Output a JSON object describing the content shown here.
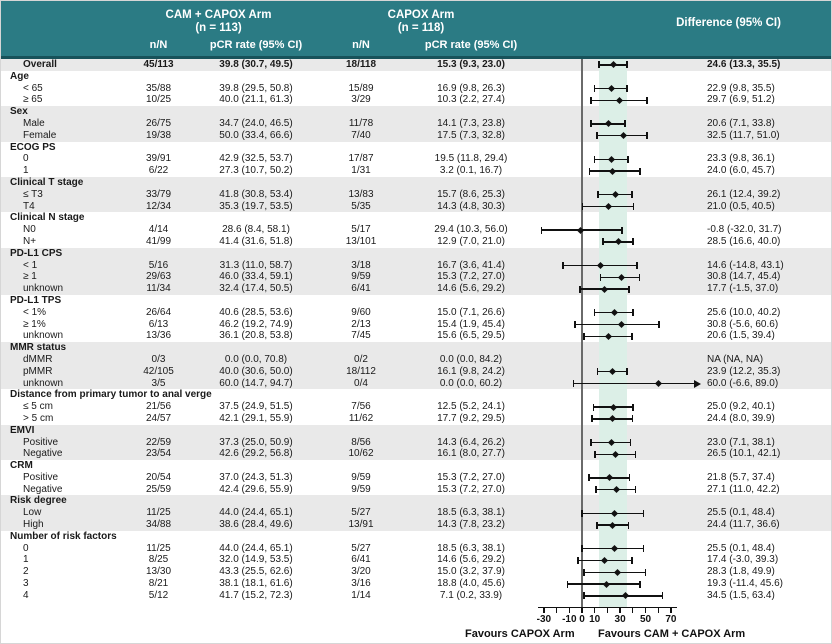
{
  "header": {
    "arm1": {
      "title": "CAM + CAPOX Arm",
      "subtitle": "(n = 113)",
      "col_nn": "n/N",
      "col_rate": "pCR rate (95% CI)"
    },
    "arm2": {
      "title": "CAPOX Arm",
      "subtitle": "(n = 118)",
      "col_nn": "n/N",
      "col_rate": "pCR rate (95% CI)"
    },
    "diff_label": "Difference (95% CI)"
  },
  "footer": {
    "left": "Favours CAPOX Arm",
    "right": "Favours CAM + CAPOX Arm"
  },
  "colors": {
    "header_bg": "#2b7b84",
    "header_border": "#17525a",
    "row_shade": "#e9e9e9",
    "ci_band": "#dcefe7",
    "marker": "#111111",
    "zero_line": "#6a6a6a"
  },
  "axis": {
    "tick_min": -30,
    "tick_max": 70,
    "tick_step": 10,
    "labeled_ticks": [
      -30,
      -10,
      0,
      10,
      30,
      50,
      70
    ]
  },
  "chart_data": {
    "type": "forest",
    "x_axis_label": "Difference (95% CI)",
    "xlim_ticks": [
      -30,
      70
    ],
    "shaded_band_ci": [
      13.3,
      35.5
    ],
    "rows": [
      {
        "label": "Overall",
        "bold": true,
        "shade": true,
        "cam_nN": "45/113",
        "cam_rate": "39.8 (30.7, 49.5)",
        "cap_nN": "18/118",
        "cap_rate": "15.3 (9.3, 23.0)",
        "diff": "24.6 (13.3, 35.5)",
        "est": 24.6,
        "lo": 13.3,
        "hi": 35.5
      },
      {
        "label": "Age",
        "section": true
      },
      {
        "label": "< 65",
        "cam_nN": "35/88",
        "cam_rate": "39.8 (29.5, 50.8)",
        "cap_nN": "15/89",
        "cap_rate": "16.9 (9.8, 26.3)",
        "diff": "22.9 (9.8, 35.5)",
        "est": 22.9,
        "lo": 9.8,
        "hi": 35.5
      },
      {
        "label": "≥ 65",
        "cam_nN": "10/25",
        "cam_rate": "40.0 (21.1, 61.3)",
        "cap_nN": "3/29",
        "cap_rate": "10.3 (2.2, 27.4)",
        "diff": "29.7 (6.9, 51.2)",
        "est": 29.7,
        "lo": 6.9,
        "hi": 51.2
      },
      {
        "label": "Sex",
        "section": true,
        "shade": true
      },
      {
        "label": "Male",
        "shade": true,
        "cam_nN": "26/75",
        "cam_rate": "34.7 (24.0, 46.5)",
        "cap_nN": "11/78",
        "cap_rate": "14.1 (7.3, 23.8)",
        "diff": "20.6 (7.1, 33.8)",
        "est": 20.6,
        "lo": 7.1,
        "hi": 33.8
      },
      {
        "label": "Female",
        "shade": true,
        "cam_nN": "19/38",
        "cam_rate": "50.0 (33.4, 66.6)",
        "cap_nN": "7/40",
        "cap_rate": "17.5 (7.3, 32.8)",
        "diff": "32.5 (11.7, 51.0)",
        "est": 32.5,
        "lo": 11.7,
        "hi": 51.0
      },
      {
        "label": "ECOG PS",
        "section": true
      },
      {
        "label": "0",
        "cam_nN": "39/91",
        "cam_rate": "42.9 (32.5, 53.7)",
        "cap_nN": "17/87",
        "cap_rate": "19.5 (11.8, 29.4)",
        "diff": "23.3 (9.8, 36.1)",
        "est": 23.3,
        "lo": 9.8,
        "hi": 36.1
      },
      {
        "label": "1",
        "cam_nN": "6/22",
        "cam_rate": "27.3 (10.7, 50.2)",
        "cap_nN": "1/31",
        "cap_rate": "3.2 (0.1, 16.7)",
        "diff": "24.0 (6.0, 45.7)",
        "est": 24.0,
        "lo": 6.0,
        "hi": 45.7
      },
      {
        "label": "Clinical T stage",
        "section": true,
        "shade": true
      },
      {
        "label": "≤ T3",
        "shade": true,
        "cam_nN": "33/79",
        "cam_rate": "41.8 (30.8, 53.4)",
        "cap_nN": "13/83",
        "cap_rate": "15.7 (8.6, 25.3)",
        "diff": "26.1 (12.4, 39.2)",
        "est": 26.1,
        "lo": 12.4,
        "hi": 39.2
      },
      {
        "label": "T4",
        "shade": true,
        "cam_nN": "12/34",
        "cam_rate": "35.3 (19.7, 53.5)",
        "cap_nN": "5/35",
        "cap_rate": "14.3 (4.8, 30.3)",
        "diff": "21.0 (0.5, 40.5)",
        "est": 21.0,
        "lo": 0.5,
        "hi": 40.5
      },
      {
        "label": "Clinical N stage",
        "section": true
      },
      {
        "label": "N0",
        "cam_nN": "4/14",
        "cam_rate": "28.6 (8.4, 58.1)",
        "cap_nN": "5/17",
        "cap_rate": "29.4 (10.3, 56.0)",
        "diff": "-0.8 (-32.0, 31.7)",
        "est": -0.8,
        "lo": -32.0,
        "hi": 31.7
      },
      {
        "label": "N+",
        "cam_nN": "41/99",
        "cam_rate": "41.4 (31.6, 51.8)",
        "cap_nN": "13/101",
        "cap_rate": "12.9 (7.0, 21.0)",
        "diff": "28.5 (16.6, 40.0)",
        "est": 28.5,
        "lo": 16.6,
        "hi": 40.0
      },
      {
        "label": "PD-L1 CPS",
        "section": true,
        "shade": true
      },
      {
        "label": "< 1",
        "shade": true,
        "cam_nN": "5/16",
        "cam_rate": "31.3 (11.0, 58.7)",
        "cap_nN": "3/18",
        "cap_rate": "16.7 (3.6, 41.4)",
        "diff": "14.6 (-14.8, 43.1)",
        "est": 14.6,
        "lo": -14.8,
        "hi": 43.1
      },
      {
        "label": "≥ 1",
        "shade": true,
        "cam_nN": "29/63",
        "cam_rate": "46.0 (33.4, 59.1)",
        "cap_nN": "9/59",
        "cap_rate": "15.3 (7.2, 27.0)",
        "diff": "30.8 (14.7, 45.4)",
        "est": 30.8,
        "lo": 14.7,
        "hi": 45.4
      },
      {
        "label": "unknown",
        "shade": true,
        "cam_nN": "11/34",
        "cam_rate": "32.4 (17.4, 50.5)",
        "cap_nN": "6/41",
        "cap_rate": "14.6 (5.6, 29.2)",
        "diff": "17.7 (-1.5, 37.0)",
        "est": 17.7,
        "lo": -1.5,
        "hi": 37.0
      },
      {
        "label": "PD-L1 TPS",
        "section": true
      },
      {
        "label": "< 1%",
        "cam_nN": "26/64",
        "cam_rate": "40.6 (28.5, 53.6)",
        "cap_nN": "9/60",
        "cap_rate": "15.0 (7.1, 26.6)",
        "diff": "25.6 (10.0, 40.2)",
        "est": 25.6,
        "lo": 10.0,
        "hi": 40.2
      },
      {
        "label": "≥ 1%",
        "cam_nN": "6/13",
        "cam_rate": "46.2 (19.2, 74.9)",
        "cap_nN": "2/13",
        "cap_rate": "15.4 (1.9, 45.4)",
        "diff": "30.8 (-5.6, 60.6)",
        "est": 30.8,
        "lo": -5.6,
        "hi": 60.6
      },
      {
        "label": "unknown",
        "cam_nN": "13/36",
        "cam_rate": "36.1 (20.8, 53.8)",
        "cap_nN": "7/45",
        "cap_rate": "15.6 (6.5, 29.5)",
        "diff": "20.6 (1.5, 39.4)",
        "est": 20.6,
        "lo": 1.5,
        "hi": 39.4
      },
      {
        "label": "MMR status",
        "section": true,
        "shade": true
      },
      {
        "label": "dMMR",
        "shade": true,
        "cam_nN": "0/3",
        "cam_rate": "0.0 (0.0, 70.8)",
        "cap_nN": "0/2",
        "cap_rate": "0.0 (0.0, 84.2)",
        "diff": "NA (NA, NA)",
        "est": null
      },
      {
        "label": "pMMR",
        "shade": true,
        "cam_nN": "42/105",
        "cam_rate": "40.0 (30.6, 50.0)",
        "cap_nN": "18/112",
        "cap_rate": "16.1 (9.8, 24.2)",
        "diff": "23.9 (12.2, 35.3)",
        "est": 23.9,
        "lo": 12.2,
        "hi": 35.3
      },
      {
        "label": "unknown",
        "shade": true,
        "cam_nN": "3/5",
        "cam_rate": "60.0 (14.7, 94.7)",
        "cap_nN": "0/4",
        "cap_rate": "0.0 (0.0, 60.2)",
        "diff": "60.0 (-6.6, 89.0)",
        "est": 60.0,
        "lo": -6.6,
        "hi": 89.0,
        "arrow_right": true
      },
      {
        "label": "Distance from primary tumor to anal verge",
        "section": true
      },
      {
        "label": "≤ 5 cm",
        "cam_nN": "21/56",
        "cam_rate": "37.5 (24.9, 51.5)",
        "cap_nN": "7/56",
        "cap_rate": "12.5 (5.2, 24.1)",
        "diff": "25.0 (9.2, 40.1)",
        "est": 25.0,
        "lo": 9.2,
        "hi": 40.1
      },
      {
        "label": "> 5 cm",
        "cam_nN": "24/57",
        "cam_rate": "42.1 (29.1, 55.9)",
        "cap_nN": "11/62",
        "cap_rate": "17.7 (9.2, 29.5)",
        "diff": "24.4 (8.0, 39.9)",
        "est": 24.4,
        "lo": 8.0,
        "hi": 39.9
      },
      {
        "label": "EMVI",
        "section": true,
        "shade": true
      },
      {
        "label": "Positive",
        "shade": true,
        "cam_nN": "22/59",
        "cam_rate": "37.3 (25.0, 50.9)",
        "cap_nN": "8/56",
        "cap_rate": "14.3 (6.4, 26.2)",
        "diff": "23.0 (7.1, 38.1)",
        "est": 23.0,
        "lo": 7.1,
        "hi": 38.1
      },
      {
        "label": "Negative",
        "shade": true,
        "cam_nN": "23/54",
        "cam_rate": "42.6 (29.2, 56.8)",
        "cap_nN": "10/62",
        "cap_rate": "16.1 (8.0, 27.7)",
        "diff": "26.5 (10.1, 42.1)",
        "est": 26.5,
        "lo": 10.1,
        "hi": 42.1
      },
      {
        "label": "CRM",
        "section": true
      },
      {
        "label": "Positive",
        "cam_nN": "20/54",
        "cam_rate": "37.0 (24.3, 51.3)",
        "cap_nN": "9/59",
        "cap_rate": "15.3 (7.2, 27.0)",
        "diff": "21.8 (5.7, 37.4)",
        "est": 21.8,
        "lo": 5.7,
        "hi": 37.4
      },
      {
        "label": "Negative",
        "cam_nN": "25/59",
        "cam_rate": "42.4 (29.6, 55.9)",
        "cap_nN": "9/59",
        "cap_rate": "15.3 (7.2, 27.0)",
        "diff": "27.1 (11.0, 42.2)",
        "est": 27.1,
        "lo": 11.0,
        "hi": 42.2
      },
      {
        "label": "Risk degree",
        "section": true,
        "shade": true
      },
      {
        "label": "Low",
        "shade": true,
        "cam_nN": "11/25",
        "cam_rate": "44.0 (24.4, 65.1)",
        "cap_nN": "5/27",
        "cap_rate": "18.5 (6.3, 38.1)",
        "diff": "25.5 (0.1, 48.4)",
        "est": 25.5,
        "lo": 0.1,
        "hi": 48.4
      },
      {
        "label": "High",
        "shade": true,
        "cam_nN": "34/88",
        "cam_rate": "38.6 (28.4, 49.6)",
        "cap_nN": "13/91",
        "cap_rate": "14.3 (7.8, 23.2)",
        "diff": "24.4 (11.7, 36.6)",
        "est": 24.4,
        "lo": 11.7,
        "hi": 36.6
      },
      {
        "label": "Number of risk factors",
        "section": true
      },
      {
        "label": "0",
        "cam_nN": "11/25",
        "cam_rate": "44.0 (24.4, 65.1)",
        "cap_nN": "5/27",
        "cap_rate": "18.5 (6.3, 38.1)",
        "diff": "25.5 (0.1, 48.4)",
        "est": 25.5,
        "lo": 0.1,
        "hi": 48.4
      },
      {
        "label": "1",
        "cam_nN": "8/25",
        "cam_rate": "32.0 (14.9, 53.5)",
        "cap_nN": "6/41",
        "cap_rate": "14.6 (5.6, 29.2)",
        "diff": "17.4 (-3.0, 39.3)",
        "est": 17.4,
        "lo": -3.0,
        "hi": 39.3
      },
      {
        "label": "2",
        "cam_nN": "13/30",
        "cam_rate": "43.3 (25.5, 62.6)",
        "cap_nN": "3/20",
        "cap_rate": "15.0 (3.2, 37.9)",
        "diff": "28.3 (1.8, 49.9)",
        "est": 28.3,
        "lo": 1.8,
        "hi": 49.9
      },
      {
        "label": "3",
        "cam_nN": "8/21",
        "cam_rate": "38.1 (18.1, 61.6)",
        "cap_nN": "3/16",
        "cap_rate": "18.8 (4.0, 45.6)",
        "diff": "19.3 (-11.4, 45.6)",
        "est": 19.3,
        "lo": -11.4,
        "hi": 45.6
      },
      {
        "label": "4",
        "cam_nN": "5/12",
        "cam_rate": "41.7 (15.2, 72.3)",
        "cap_nN": "1/14",
        "cap_rate": "7.1 (0.2, 33.9)",
        "diff": "34.5 (1.5, 63.4)",
        "est": 34.5,
        "lo": 1.5,
        "hi": 63.4
      }
    ]
  }
}
